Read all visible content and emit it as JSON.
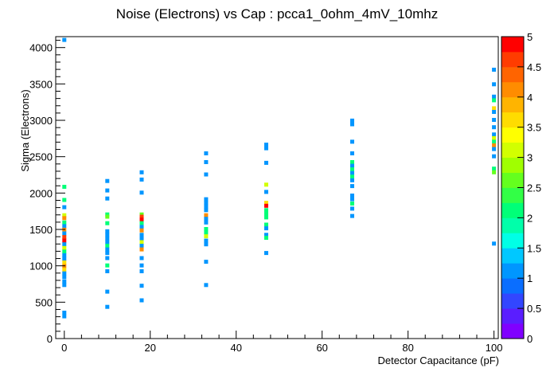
{
  "chart_data": {
    "type": "heatmap",
    "title": "Noise (Electrons) vs Cap : pcca1_0ohm_4mV_10mhz",
    "xlabel": "Detector Capacitance (pF)",
    "ylabel": "Sigma (Electrons)",
    "xlim": [
      -2,
      101
    ],
    "ylim": [
      0,
      4150
    ],
    "x_ticks": [
      0,
      20,
      40,
      60,
      80,
      100
    ],
    "y_ticks": [
      0,
      500,
      1000,
      1500,
      2000,
      2500,
      3000,
      3500,
      4000
    ],
    "colorbar": {
      "min": 0,
      "max": 5,
      "ticks": [
        "0",
        "0.5",
        "1",
        "1.5",
        "2",
        "2.5",
        "3",
        "3.5",
        "4",
        "4.5",
        "5"
      ],
      "palette": [
        "#8000ff",
        "#5a1eff",
        "#3246ff",
        "#0a6eff",
        "#0096ff",
        "#00c8ff",
        "#00ffe6",
        "#00ffaa",
        "#00ff78",
        "#32ff46",
        "#64ff1e",
        "#a0ff00",
        "#d2ff00",
        "#ffff00",
        "#ffdc00",
        "#ffb400",
        "#ff8c00",
        "#ff6400",
        "#ff3c00",
        "#ff0000"
      ]
    },
    "cells": [
      {
        "x": 0,
        "y": 4100,
        "v": 1
      },
      {
        "x": 0,
        "y": 2080,
        "v": 2
      },
      {
        "x": 0,
        "y": 1900,
        "v": 2
      },
      {
        "x": 0,
        "y": 1800,
        "v": 1
      },
      {
        "x": 0,
        "y": 1690,
        "v": 3
      },
      {
        "x": 0,
        "y": 1650,
        "v": 4
      },
      {
        "x": 0,
        "y": 1590,
        "v": 2
      },
      {
        "x": 0,
        "y": 1540,
        "v": 1
      },
      {
        "x": 0,
        "y": 1490,
        "v": 4
      },
      {
        "x": 0,
        "y": 1440,
        "v": 1
      },
      {
        "x": 0,
        "y": 1390,
        "v": 4.5
      },
      {
        "x": 0,
        "y": 1340,
        "v": 5
      },
      {
        "x": 0,
        "y": 1290,
        "v": 1
      },
      {
        "x": 0,
        "y": 1240,
        "v": 3
      },
      {
        "x": 0,
        "y": 1190,
        "v": 2
      },
      {
        "x": 0,
        "y": 1140,
        "v": 1
      },
      {
        "x": 0,
        "y": 1090,
        "v": 1
      },
      {
        "x": 0,
        "y": 1040,
        "v": 3.5
      },
      {
        "x": 0,
        "y": 990,
        "v": 4
      },
      {
        "x": 0,
        "y": 940,
        "v": 3.5
      },
      {
        "x": 0,
        "y": 890,
        "v": 1
      },
      {
        "x": 0,
        "y": 840,
        "v": 1
      },
      {
        "x": 0,
        "y": 780,
        "v": 1
      },
      {
        "x": 0,
        "y": 730,
        "v": 1
      },
      {
        "x": 0,
        "y": 350,
        "v": 1
      },
      {
        "x": 0,
        "y": 300,
        "v": 1
      },
      {
        "x": 10,
        "y": 2160,
        "v": 1
      },
      {
        "x": 10,
        "y": 2030,
        "v": 1
      },
      {
        "x": 10,
        "y": 1920,
        "v": 1
      },
      {
        "x": 10,
        "y": 1700,
        "v": 2
      },
      {
        "x": 10,
        "y": 1670,
        "v": 2.5
      },
      {
        "x": 10,
        "y": 1580,
        "v": 2
      },
      {
        "x": 10,
        "y": 1470,
        "v": 1
      },
      {
        "x": 10,
        "y": 1420,
        "v": 1
      },
      {
        "x": 10,
        "y": 1370,
        "v": 1
      },
      {
        "x": 10,
        "y": 1320,
        "v": 1
      },
      {
        "x": 10,
        "y": 1270,
        "v": 2
      },
      {
        "x": 10,
        "y": 1220,
        "v": 1
      },
      {
        "x": 10,
        "y": 1170,
        "v": 1
      },
      {
        "x": 10,
        "y": 1100,
        "v": 1
      },
      {
        "x": 10,
        "y": 1000,
        "v": 2
      },
      {
        "x": 10,
        "y": 920,
        "v": 1
      },
      {
        "x": 10,
        "y": 640,
        "v": 1
      },
      {
        "x": 10,
        "y": 430,
        "v": 1
      },
      {
        "x": 18,
        "y": 2280,
        "v": 1
      },
      {
        "x": 18,
        "y": 2180,
        "v": 1
      },
      {
        "x": 18,
        "y": 2000,
        "v": 1
      },
      {
        "x": 18,
        "y": 1700,
        "v": 2.5
      },
      {
        "x": 18,
        "y": 1670,
        "v": 4.5
      },
      {
        "x": 18,
        "y": 1630,
        "v": 5
      },
      {
        "x": 18,
        "y": 1580,
        "v": 2
      },
      {
        "x": 18,
        "y": 1530,
        "v": 1
      },
      {
        "x": 18,
        "y": 1480,
        "v": 4
      },
      {
        "x": 18,
        "y": 1420,
        "v": 1
      },
      {
        "x": 18,
        "y": 1370,
        "v": 1
      },
      {
        "x": 18,
        "y": 1320,
        "v": 3
      },
      {
        "x": 18,
        "y": 1270,
        "v": 1
      },
      {
        "x": 18,
        "y": 1220,
        "v": 4
      },
      {
        "x": 18,
        "y": 1100,
        "v": 1
      },
      {
        "x": 18,
        "y": 1000,
        "v": 1
      },
      {
        "x": 18,
        "y": 920,
        "v": 1
      },
      {
        "x": 18,
        "y": 720,
        "v": 1
      },
      {
        "x": 18,
        "y": 520,
        "v": 1
      },
      {
        "x": 33,
        "y": 2540,
        "v": 1
      },
      {
        "x": 33,
        "y": 2420,
        "v": 1
      },
      {
        "x": 33,
        "y": 2250,
        "v": 1
      },
      {
        "x": 33,
        "y": 1910,
        "v": 1
      },
      {
        "x": 33,
        "y": 1860,
        "v": 1
      },
      {
        "x": 33,
        "y": 1810,
        "v": 1
      },
      {
        "x": 33,
        "y": 1760,
        "v": 1
      },
      {
        "x": 33,
        "y": 1690,
        "v": 4
      },
      {
        "x": 33,
        "y": 1640,
        "v": 1
      },
      {
        "x": 33,
        "y": 1590,
        "v": 1
      },
      {
        "x": 33,
        "y": 1500,
        "v": 2
      },
      {
        "x": 33,
        "y": 1450,
        "v": 2
      },
      {
        "x": 33,
        "y": 1400,
        "v": 3
      },
      {
        "x": 33,
        "y": 1340,
        "v": 1
      },
      {
        "x": 33,
        "y": 1290,
        "v": 1
      },
      {
        "x": 33,
        "y": 1050,
        "v": 1
      },
      {
        "x": 33,
        "y": 730,
        "v": 1
      },
      {
        "x": 47,
        "y": 2660,
        "v": 1
      },
      {
        "x": 47,
        "y": 2610,
        "v": 1
      },
      {
        "x": 47,
        "y": 2410,
        "v": 1
      },
      {
        "x": 47,
        "y": 2110,
        "v": 3
      },
      {
        "x": 47,
        "y": 2010,
        "v": 1
      },
      {
        "x": 47,
        "y": 1860,
        "v": 3.5
      },
      {
        "x": 47,
        "y": 1820,
        "v": 5
      },
      {
        "x": 47,
        "y": 1760,
        "v": 2
      },
      {
        "x": 47,
        "y": 1710,
        "v": 2
      },
      {
        "x": 47,
        "y": 1660,
        "v": 2
      },
      {
        "x": 47,
        "y": 1560,
        "v": 2
      },
      {
        "x": 47,
        "y": 1510,
        "v": 1
      },
      {
        "x": 47,
        "y": 1420,
        "v": 1
      },
      {
        "x": 47,
        "y": 1380,
        "v": 2
      },
      {
        "x": 47,
        "y": 1170,
        "v": 1
      },
      {
        "x": 67,
        "y": 2990,
        "v": 1
      },
      {
        "x": 67,
        "y": 2940,
        "v": 1
      },
      {
        "x": 67,
        "y": 2700,
        "v": 1
      },
      {
        "x": 67,
        "y": 2540,
        "v": 1
      },
      {
        "x": 67,
        "y": 2420,
        "v": 2
      },
      {
        "x": 67,
        "y": 2370,
        "v": 1
      },
      {
        "x": 67,
        "y": 2320,
        "v": 2
      },
      {
        "x": 67,
        "y": 2270,
        "v": 1
      },
      {
        "x": 67,
        "y": 2220,
        "v": 2
      },
      {
        "x": 67,
        "y": 2170,
        "v": 1
      },
      {
        "x": 67,
        "y": 2090,
        "v": 1
      },
      {
        "x": 67,
        "y": 1960,
        "v": 1
      },
      {
        "x": 67,
        "y": 1910,
        "v": 1
      },
      {
        "x": 67,
        "y": 1850,
        "v": 2
      },
      {
        "x": 67,
        "y": 1780,
        "v": 1
      },
      {
        "x": 67,
        "y": 1680,
        "v": 1
      },
      {
        "x": 100,
        "y": 3690,
        "v": 1
      },
      {
        "x": 100,
        "y": 3490,
        "v": 1
      },
      {
        "x": 100,
        "y": 3320,
        "v": 1
      },
      {
        "x": 100,
        "y": 3270,
        "v": 2
      },
      {
        "x": 100,
        "y": 3160,
        "v": 3.5
      },
      {
        "x": 100,
        "y": 3110,
        "v": 1
      },
      {
        "x": 100,
        "y": 3000,
        "v": 1
      },
      {
        "x": 100,
        "y": 2900,
        "v": 1
      },
      {
        "x": 100,
        "y": 2800,
        "v": 1
      },
      {
        "x": 100,
        "y": 2750,
        "v": 3
      },
      {
        "x": 100,
        "y": 2700,
        "v": 2
      },
      {
        "x": 100,
        "y": 2650,
        "v": 4
      },
      {
        "x": 100,
        "y": 2600,
        "v": 1
      },
      {
        "x": 100,
        "y": 2500,
        "v": 1
      },
      {
        "x": 100,
        "y": 2330,
        "v": 2
      },
      {
        "x": 100,
        "y": 2280,
        "v": 2.5
      },
      {
        "x": 100,
        "y": 1300,
        "v": 1
      }
    ]
  }
}
